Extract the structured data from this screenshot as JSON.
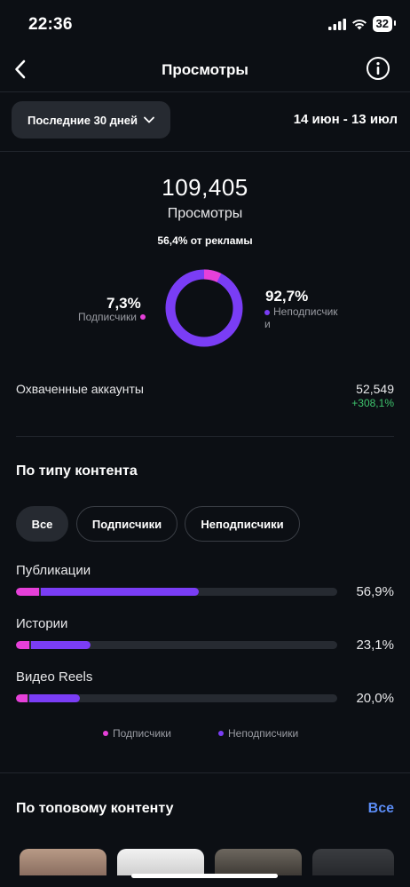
{
  "status": {
    "time": "22:36",
    "battery": "32"
  },
  "header": {
    "title": "Просмотры"
  },
  "period": {
    "label": "Последние 30 дней",
    "range": "14 июн - 13 июл"
  },
  "summary": {
    "total": "109,405",
    "total_label": "Просмотры",
    "ads_share": "56,4% от рекламы",
    "followers_pct": "7,3%",
    "followers_label": "Подписчики",
    "non_followers_pct": "92,7%",
    "non_followers_label": "Неподписчик\nи",
    "followers_fraction": 0.073
  },
  "reach": {
    "label": "Охваченные аккаунты",
    "value": "52,549",
    "delta": "+308,1%"
  },
  "content_type": {
    "title": "По типу контента",
    "filters": [
      "Все",
      "Подписчики",
      "Неподписчики"
    ],
    "active_filter": "Все",
    "items": [
      {
        "label": "Публикации",
        "pct": "56,9%",
        "followers": 0.07,
        "total": 0.569
      },
      {
        "label": "Истории",
        "pct": "23,1%",
        "followers": 0.05,
        "total": 0.231
      },
      {
        "label": "Видео Reels",
        "pct": "20,0%",
        "followers": 0.03,
        "total": 0.2
      }
    ],
    "legend": {
      "followers": "Подписчики",
      "non_followers": "Неподписчики"
    }
  },
  "top_content": {
    "title": "По топовому контенту",
    "see_all": "Все"
  },
  "colors": {
    "followers": "#e640d9",
    "non_followers": "#7a3df5",
    "positive": "#3ec46d",
    "link": "#5b8cf5"
  }
}
